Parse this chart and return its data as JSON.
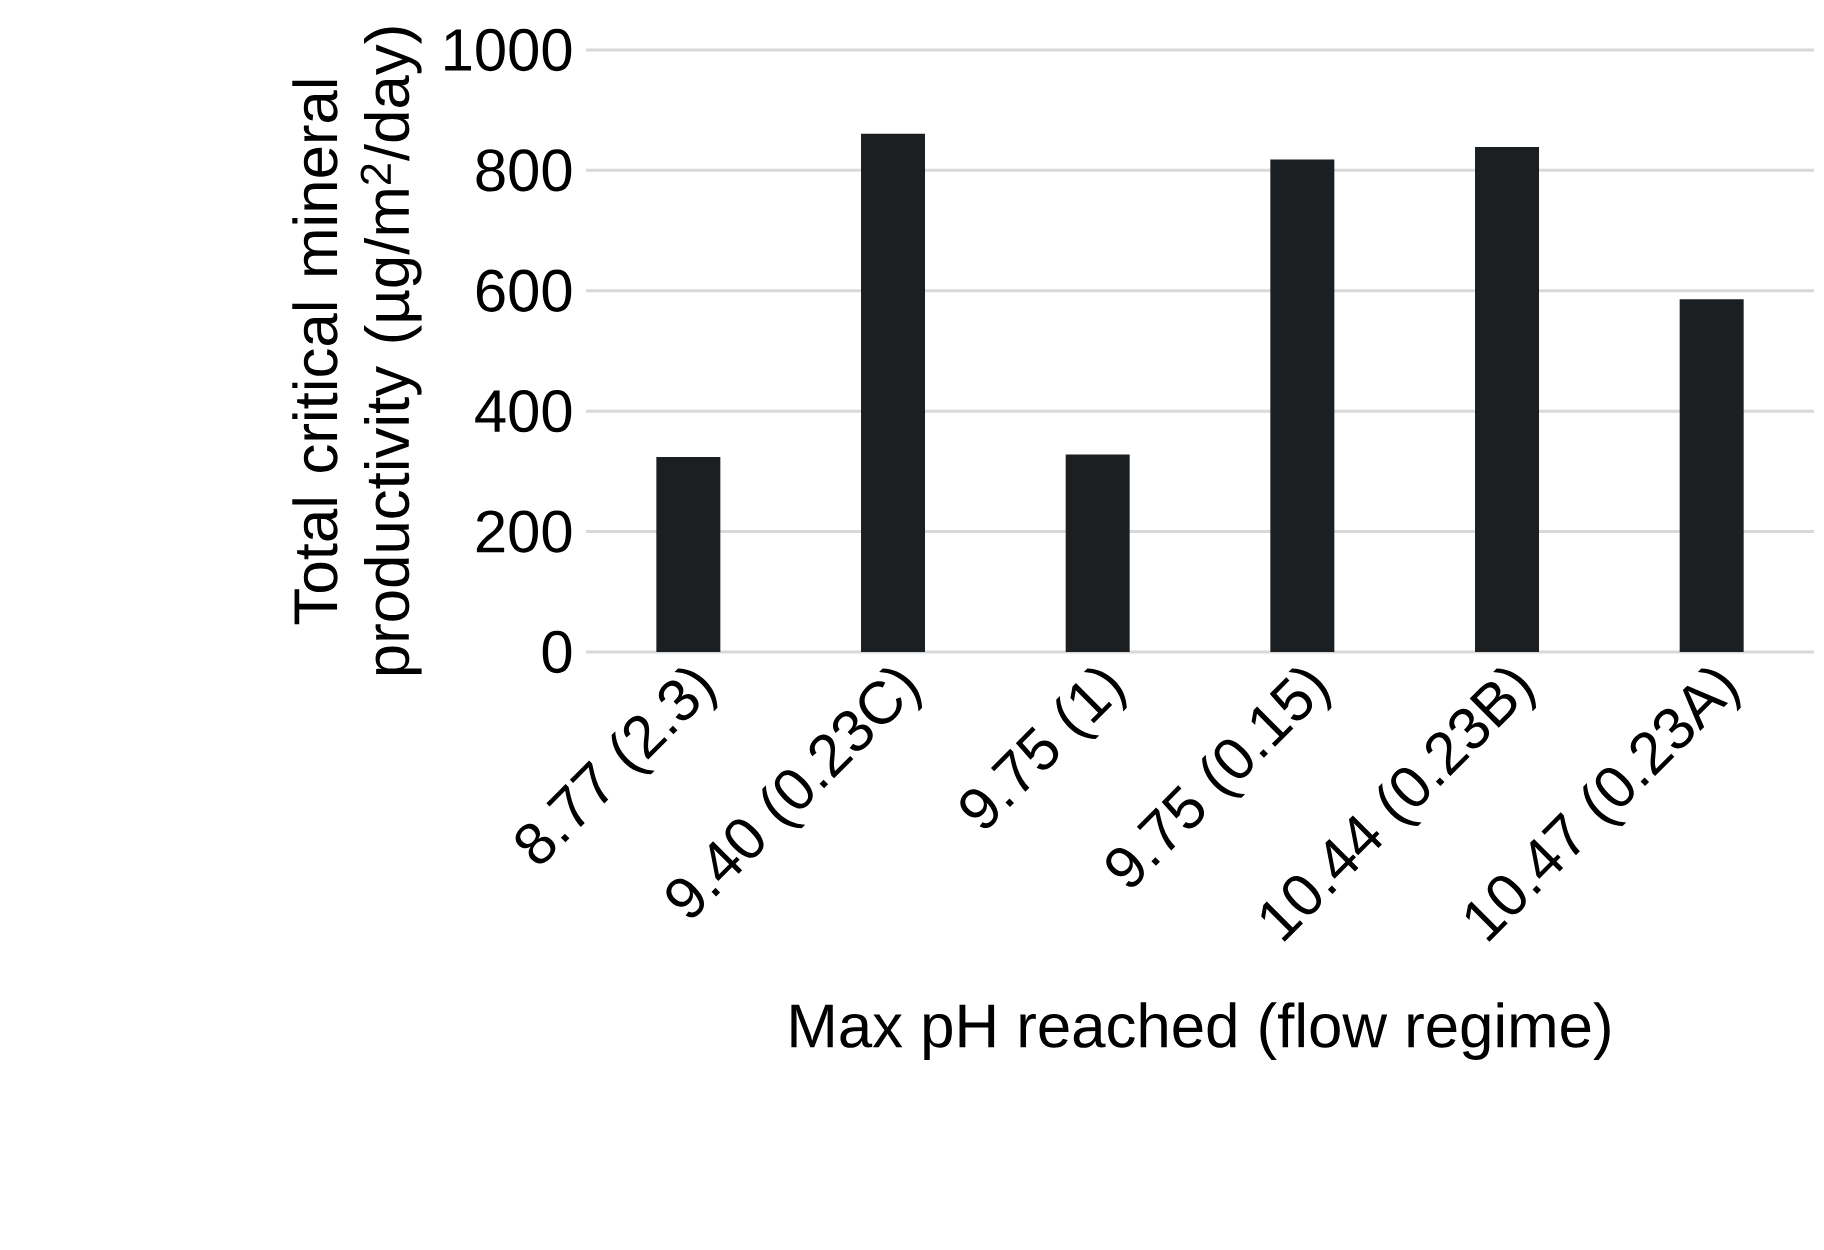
{
  "chart_data": {
    "type": "bar",
    "xlabel": "Max pH reached (flow regime)",
    "ylabel": "Total critical mineral productivity (µg/m$^{2}$/day)",
    "categories": [
      "8.77 (2.3)",
      "9.40 (0.23C)",
      "9.75 (1)",
      "9.75 (0.15)",
      "10.44 (0.23B)",
      "10.47 (0.23A)"
    ],
    "values": [
      324,
      861,
      328,
      818,
      839,
      586
    ],
    "color": "#1c1f22",
    "ylim": [
      0,
      1000
    ],
    "yticks": [
      0,
      200,
      400,
      600,
      800,
      1000
    ],
    "grid": "y"
  }
}
